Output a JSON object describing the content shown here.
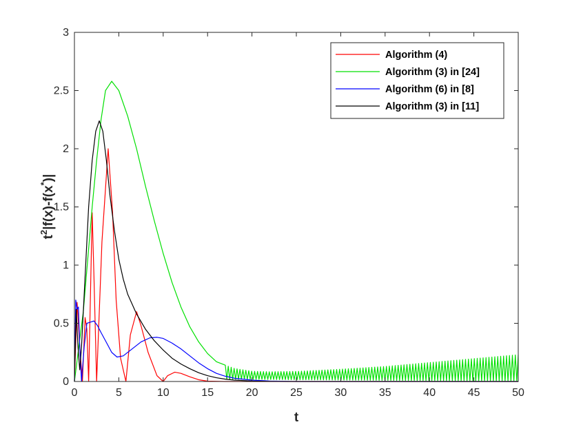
{
  "chart_data": {
    "type": "line",
    "xlabel": "t",
    "ylabel": {
      "base": "t",
      "sup1": "2",
      "mid": "|f(x)-f(x",
      "sup2": "*",
      "end": ")|"
    },
    "xlim": [
      0,
      50
    ],
    "ylim": [
      0,
      3
    ],
    "xticks": [
      0,
      5,
      10,
      15,
      20,
      25,
      30,
      35,
      40,
      45,
      50
    ],
    "yticks": [
      0,
      0.5,
      1,
      1.5,
      2,
      2.5,
      3
    ],
    "xtick_labels": [
      "0",
      "5",
      "10",
      "15",
      "20",
      "25",
      "30",
      "35",
      "40",
      "45",
      "50"
    ],
    "ytick_labels": [
      "0",
      "0.5",
      "1",
      "1.5",
      "2",
      "2.5",
      "3"
    ],
    "grid": false,
    "legend_position": "top-right",
    "series": [
      {
        "name": "Algorithm (4)",
        "color": "#ff0000",
        "points": [
          [
            0,
            0
          ],
          [
            0.3,
            0.68
          ],
          [
            0.6,
            0.3
          ],
          [
            0.9,
            0
          ],
          [
            1.2,
            0.55
          ],
          [
            1.4,
            0.45
          ],
          [
            1.6,
            0
          ],
          [
            2.0,
            1.45
          ],
          [
            2.2,
            0.9
          ],
          [
            2.5,
            0
          ],
          [
            3.1,
            1.2
          ],
          [
            3.8,
            2.0
          ],
          [
            4.3,
            1.45
          ],
          [
            4.7,
            0.7
          ],
          [
            5.2,
            0.2
          ],
          [
            5.8,
            0
          ],
          [
            6.3,
            0.4
          ],
          [
            7.0,
            0.6
          ],
          [
            7.5,
            0.48
          ],
          [
            8.3,
            0.25
          ],
          [
            9.3,
            0.05
          ],
          [
            10.0,
            0
          ],
          [
            10.5,
            0.05
          ],
          [
            11.3,
            0.08
          ],
          [
            12.0,
            0.07
          ],
          [
            13.0,
            0.04
          ],
          [
            14.0,
            0.015
          ],
          [
            15.0,
            0.003
          ],
          [
            17.0,
            0
          ],
          [
            50,
            0
          ]
        ]
      },
      {
        "name": "Algorithm (3) in [24]",
        "color": "#00e000",
        "points": [
          [
            0,
            0
          ],
          [
            0.5,
            0.3
          ],
          [
            1.0,
            0.6
          ],
          [
            1.5,
            1.05
          ],
          [
            2.0,
            1.5
          ],
          [
            2.5,
            1.9
          ],
          [
            3.0,
            2.25
          ],
          [
            3.5,
            2.5
          ],
          [
            4.2,
            2.58
          ],
          [
            5.0,
            2.5
          ],
          [
            6.0,
            2.28
          ],
          [
            7.0,
            2.0
          ],
          [
            8.0,
            1.68
          ],
          [
            9.0,
            1.38
          ],
          [
            10.0,
            1.1
          ],
          [
            11.0,
            0.85
          ],
          [
            12.0,
            0.64
          ],
          [
            13.0,
            0.47
          ],
          [
            14.0,
            0.34
          ],
          [
            15.0,
            0.24
          ],
          [
            16.0,
            0.17
          ],
          [
            17.0,
            0.12
          ],
          [
            18.0,
            0.09
          ],
          [
            20.0,
            0.06
          ],
          [
            22.0,
            0.05
          ],
          [
            25.0,
            0.045
          ],
          [
            30.0,
            0.05
          ],
          [
            35.0,
            0.06
          ],
          [
            40.0,
            0.08
          ],
          [
            45.0,
            0.1
          ],
          [
            50.0,
            0.12
          ]
        ],
        "oscillation": {
          "start": 17,
          "step": 0.33,
          "base": 0.02,
          "amp_start": 0.04,
          "amp_end": 0.22
        }
      },
      {
        "name": "Algorithm (6) in [8]",
        "color": "#0000ff",
        "points": [
          [
            0,
            0
          ],
          [
            0.15,
            0.7
          ],
          [
            0.3,
            0.62
          ],
          [
            0.45,
            0.64
          ],
          [
            0.6,
            0.3
          ],
          [
            0.8,
            0
          ],
          [
            1.1,
            0.3
          ],
          [
            1.4,
            0.5
          ],
          [
            1.8,
            0.51
          ],
          [
            2.2,
            0.52
          ],
          [
            2.6,
            0.48
          ],
          [
            3.0,
            0.42
          ],
          [
            3.5,
            0.35
          ],
          [
            4.2,
            0.25
          ],
          [
            4.8,
            0.21
          ],
          [
            5.5,
            0.22
          ],
          [
            6.5,
            0.28
          ],
          [
            7.5,
            0.34
          ],
          [
            8.5,
            0.375
          ],
          [
            9.3,
            0.38
          ],
          [
            10.0,
            0.37
          ],
          [
            11.0,
            0.33
          ],
          [
            12.0,
            0.28
          ],
          [
            13.0,
            0.22
          ],
          [
            14.0,
            0.16
          ],
          [
            15.0,
            0.11
          ],
          [
            16.0,
            0.07
          ],
          [
            17.0,
            0.045
          ],
          [
            18.0,
            0.028
          ],
          [
            20.0,
            0.012
          ],
          [
            22.0,
            0.004
          ],
          [
            25.0,
            0
          ],
          [
            50,
            0
          ]
        ]
      },
      {
        "name": "Algorithm (3) in [11]",
        "color": "#000000",
        "points": [
          [
            0,
            0
          ],
          [
            0.2,
            0.62
          ],
          [
            0.4,
            0.3
          ],
          [
            0.6,
            0.1
          ],
          [
            0.8,
            0.3
          ],
          [
            1.2,
            0.9
          ],
          [
            1.6,
            1.5
          ],
          [
            2.0,
            1.9
          ],
          [
            2.4,
            2.15
          ],
          [
            2.8,
            2.24
          ],
          [
            3.2,
            2.15
          ],
          [
            3.6,
            1.9
          ],
          [
            4.0,
            1.6
          ],
          [
            4.5,
            1.3
          ],
          [
            5.0,
            1.05
          ],
          [
            5.5,
            0.88
          ],
          [
            6.0,
            0.75
          ],
          [
            7.0,
            0.58
          ],
          [
            8.0,
            0.45
          ],
          [
            9.0,
            0.35
          ],
          [
            10.0,
            0.27
          ],
          [
            11.0,
            0.2
          ],
          [
            12.0,
            0.15
          ],
          [
            13.0,
            0.11
          ],
          [
            14.0,
            0.075
          ],
          [
            15.0,
            0.05
          ],
          [
            16.0,
            0.032
          ],
          [
            17.0,
            0.02
          ],
          [
            18.0,
            0.012
          ],
          [
            20.0,
            0.004
          ],
          [
            22.0,
            0.001
          ],
          [
            24.0,
            0
          ],
          [
            50,
            0
          ]
        ]
      }
    ]
  }
}
